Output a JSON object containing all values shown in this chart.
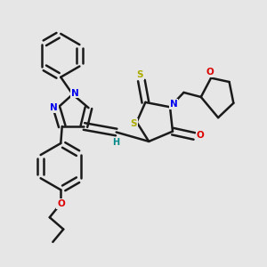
{
  "bg_color": "#e6e6e6",
  "bond_color": "#1a1a1a",
  "bond_width": 1.8,
  "atom_colors": {
    "N": "#0000ee",
    "O": "#dd0000",
    "S": "#aaaa00",
    "H": "#008888"
  },
  "fs": 7.5,
  "dbo": 0.013
}
